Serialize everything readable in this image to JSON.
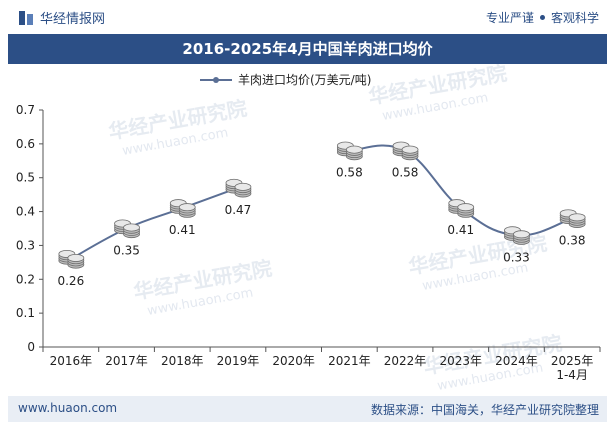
{
  "header": {
    "brand": "华经情报网",
    "tagline_left": "专业严谨",
    "tagline_right": "客观科学",
    "brand_color": "#2c4f86"
  },
  "title": "2016-2025年4月中国羊肉进口均价",
  "footer": {
    "website": "www.huaon.com",
    "source": "数据来源：中国海关，华经产业研究院整理"
  },
  "watermark": {
    "text": "华经产业研究院",
    "url": "www.huaon.com"
  },
  "chart_data": {
    "type": "line",
    "title": "2016-2025年4月中国羊肉进口均价",
    "categories": [
      "2016年",
      "2017年",
      "2018年",
      "2019年",
      "2020年",
      "2021年",
      "2022年",
      "2023年",
      "2024年",
      "2025年\n1-4月"
    ],
    "series": [
      {
        "name": "羊肉进口均价(万美元/吨)",
        "values": [
          0.26,
          0.35,
          0.41,
          0.47,
          null,
          0.58,
          0.58,
          0.41,
          0.33,
          0.38
        ],
        "color": "#5b6f95"
      }
    ],
    "value_labels": [
      "0.26",
      "0.35",
      "0.41",
      "0.47",
      "",
      "0.58",
      "0.58",
      "0.41",
      "0.33",
      "0.38"
    ],
    "ylim": [
      0,
      0.7
    ],
    "yticks": [
      0,
      0.1,
      0.2,
      0.3,
      0.4,
      0.5,
      0.6,
      0.7
    ],
    "ytick_labels": [
      "0",
      "0.1",
      "0.2",
      "0.3",
      "0.4",
      "0.5",
      "0.6",
      "0.7"
    ],
    "grid": false,
    "legend": "top-center",
    "xlabel": "",
    "ylabel": ""
  }
}
